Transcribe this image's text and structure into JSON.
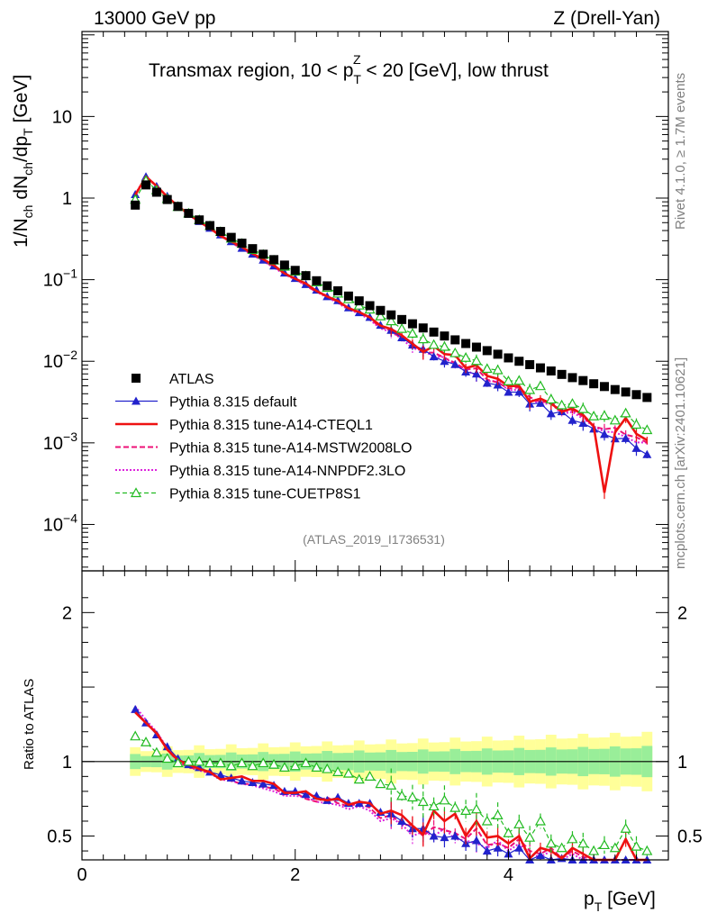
{
  "chart_data": {
    "type": "line",
    "header_left": "13000 GeV pp",
    "header_right": "Z (Drell-Yan)",
    "title_main": "Transmax region, 10 < p",
    "title_sub": "T",
    "title_sup": "Z",
    "title_rest": " < 20 [GeV], low thrust",
    "side_label_top": "Rivet 4.1.0, ≥ 1.7M events",
    "side_label_bottom": "mcplots.cern.ch [arXiv:2401.10621]",
    "analysis_id": "(ATLAS_2019_I1736531)",
    "ylabel_parts": [
      "1/N",
      "ch",
      " dN",
      "ch",
      "/dp",
      "T",
      " [GeV]"
    ],
    "ratio_ylabel": "Ratio to ATLAS",
    "xlabel_main": "p",
    "xlabel_sub": "T",
    "xlabel_rest": " [GeV]",
    "xlim": [
      0,
      5.5
    ],
    "ylim_log": [
      2.7e-05,
      110
    ],
    "ratio_ylim": [
      0.34,
      2.28
    ],
    "x_ticks": [
      {
        "v": 0,
        "label": "0"
      },
      {
        "v": 2,
        "label": "2"
      },
      {
        "v": 4,
        "label": "4"
      }
    ],
    "y_ticks": [
      {
        "v": 10,
        "base": "10",
        "exp": ""
      },
      {
        "v": 1,
        "base": "1",
        "exp": ""
      },
      {
        "v": 0.1,
        "base": "10",
        "exp": "−1"
      },
      {
        "v": 0.01,
        "base": "10",
        "exp": "−2"
      },
      {
        "v": 0.001,
        "base": "10",
        "exp": "−3"
      },
      {
        "v": 0.0001,
        "base": "10",
        "exp": "−4"
      }
    ],
    "ratio_ticks": [
      {
        "v": 2,
        "label": "2"
      },
      {
        "v": 1,
        "label": "1"
      },
      {
        "v": 0.5,
        "label": "0.5"
      }
    ],
    "colors": {
      "atlas": "#000000",
      "default": "#2222cc",
      "a14cteq": "#ee1111",
      "a14mstw": "#ee1177",
      "a14nnpdf": "#dd22dd",
      "cuetp8s1": "#22bb22",
      "band_inner": "#99ee99",
      "band_outer": "#ffff99"
    },
    "series": [
      {
        "key": "atlas",
        "name": "ATLAS"
      },
      {
        "key": "default",
        "name": "Pythia 8.315 default"
      },
      {
        "key": "a14cteq",
        "name": "Pythia 8.315 tune-A14-CTEQL1"
      },
      {
        "key": "a14mstw",
        "name": "Pythia 8.315 tune-A14-MSTW2008LO"
      },
      {
        "key": "a14nnpdf",
        "name": "Pythia 8.315 tune-A14-NNPDF2.3LO"
      },
      {
        "key": "cuetp8s1",
        "name": "Pythia 8.315 tune-CUETP8S1"
      }
    ],
    "x": [
      0.5,
      0.6,
      0.7,
      0.8,
      0.9,
      1.0,
      1.1,
      1.2,
      1.3,
      1.4,
      1.5,
      1.6,
      1.7,
      1.8,
      1.9,
      2.0,
      2.1,
      2.2,
      2.3,
      2.4,
      2.5,
      2.6,
      2.7,
      2.8,
      2.9,
      3.0,
      3.1,
      3.2,
      3.3,
      3.4,
      3.5,
      3.6,
      3.7,
      3.8,
      3.9,
      4.0,
      4.1,
      4.2,
      4.3,
      4.4,
      4.5,
      4.6,
      4.7,
      4.8,
      4.9,
      5.0,
      5.1,
      5.2,
      5.3
    ],
    "atlas_values": [
      0.82,
      1.45,
      1.18,
      0.96,
      0.79,
      0.65,
      0.54,
      0.46,
      0.39,
      0.33,
      0.28,
      0.24,
      0.205,
      0.176,
      0.151,
      0.13,
      0.112,
      0.097,
      0.084,
      0.073,
      0.063,
      0.055,
      0.048,
      0.042,
      0.037,
      0.0325,
      0.0288,
      0.0256,
      0.0228,
      0.0204,
      0.0183,
      0.0165,
      0.0149,
      0.0135,
      0.0122,
      0.011,
      0.01,
      0.0091,
      0.0083,
      0.0076,
      0.0069,
      0.0063,
      0.0058,
      0.0053,
      0.0049,
      0.0045,
      0.0042,
      0.0039,
      0.0036
    ],
    "ratios": {
      "default": [
        1.35,
        1.26,
        1.18,
        1.1,
        1.02,
        0.98,
        0.96,
        0.93,
        0.91,
        0.89,
        0.87,
        0.86,
        0.85,
        0.84,
        0.8,
        0.8,
        0.78,
        0.77,
        0.74,
        0.76,
        0.72,
        0.72,
        0.72,
        0.66,
        0.65,
        0.6,
        0.55,
        0.55,
        0.5,
        0.49,
        0.5,
        0.45,
        0.47,
        0.4,
        0.42,
        0.38,
        0.42,
        0.33,
        0.37,
        0.3,
        0.35,
        0.3,
        0.3,
        0.28,
        0.26,
        0.25,
        0.27,
        0.22,
        0.2
      ],
      "a14cteq": [
        1.33,
        1.26,
        1.19,
        1.08,
        1.01,
        0.98,
        0.95,
        0.93,
        0.88,
        0.89,
        0.9,
        0.87,
        0.87,
        0.85,
        0.79,
        0.79,
        0.8,
        0.75,
        0.74,
        0.75,
        0.71,
        0.73,
        0.72,
        0.65,
        0.67,
        0.64,
        0.57,
        0.51,
        0.67,
        0.6,
        0.65,
        0.5,
        0.6,
        0.49,
        0.5,
        0.45,
        0.5,
        0.35,
        0.42,
        0.4,
        0.35,
        0.42,
        0.38,
        0.3,
        0.05,
        0.3,
        0.48,
        0.33,
        0.3
      ],
      "a14mstw": [
        1.35,
        1.25,
        1.2,
        1.08,
        1.0,
        0.96,
        0.95,
        0.92,
        0.89,
        0.87,
        0.85,
        0.85,
        0.83,
        0.82,
        0.78,
        0.79,
        0.75,
        0.73,
        0.76,
        0.72,
        0.7,
        0.72,
        0.69,
        0.62,
        0.64,
        0.58,
        0.57,
        0.5,
        0.56,
        0.54,
        0.52,
        0.48,
        0.55,
        0.44,
        0.45,
        0.42,
        0.48,
        0.4,
        0.38,
        0.42,
        0.35,
        0.4,
        0.36,
        0.3,
        0.3,
        0.34,
        0.3,
        0.3,
        0.28
      ],
      "a14nnpdf": [
        1.37,
        1.28,
        1.2,
        1.09,
        1.01,
        0.96,
        0.94,
        0.92,
        0.88,
        0.87,
        0.85,
        0.84,
        0.82,
        0.8,
        0.77,
        0.77,
        0.76,
        0.73,
        0.72,
        0.71,
        0.68,
        0.7,
        0.67,
        0.6,
        0.62,
        0.58,
        0.5,
        0.53,
        0.5,
        0.55,
        0.48,
        0.47,
        0.45,
        0.42,
        0.47,
        0.4,
        0.45,
        0.38,
        0.36,
        0.4,
        0.33,
        0.38,
        0.34,
        0.3,
        0.28,
        0.3,
        0.28,
        0.26,
        0.28
      ],
      "cuetp8s1": [
        1.17,
        1.13,
        1.06,
        1.02,
        0.99,
        1.0,
        1.0,
        0.99,
        0.99,
        0.97,
        0.99,
        0.97,
        0.99,
        0.98,
        0.96,
        0.97,
        0.99,
        0.96,
        0.95,
        0.93,
        0.92,
        0.88,
        0.9,
        0.85,
        0.84,
        0.77,
        0.76,
        0.73,
        0.7,
        0.74,
        0.69,
        0.67,
        0.68,
        0.6,
        0.64,
        0.52,
        0.58,
        0.49,
        0.6,
        0.45,
        0.42,
        0.48,
        0.45,
        0.4,
        0.44,
        0.42,
        0.55,
        0.43,
        0.4
      ]
    }
  }
}
